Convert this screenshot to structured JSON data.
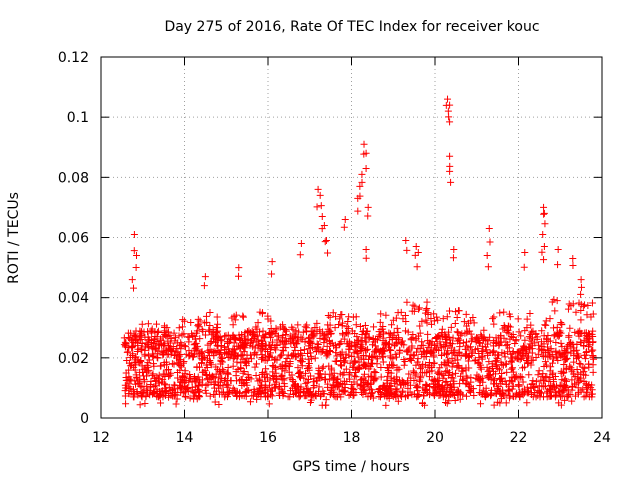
{
  "chart_data": {
    "type": "scatter",
    "title": "Day 275 of 2016, Rate Of TEC Index for receiver kouc",
    "xlabel": "GPS time / hours",
    "ylabel": "ROTI / TECUs",
    "xlim": [
      12,
      24
    ],
    "ylim": [
      0,
      0.12
    ],
    "x_ticks": [
      12,
      14,
      16,
      18,
      20,
      22,
      24
    ],
    "x_tick_labels": [
      "12",
      "14",
      "16",
      "18",
      "20",
      "22",
      "24"
    ],
    "y_ticks": [
      0,
      0.02,
      0.04,
      0.06,
      0.08,
      0.1,
      0.12
    ],
    "y_tick_labels": [
      "0",
      "0.02",
      "0.04",
      "0.06",
      "0.08",
      "0.1",
      "0.12"
    ],
    "grid": true,
    "marker": "+",
    "marker_color": "#ff0000",
    "series": [
      {
        "name": "ROTI",
        "x_range": [
          12.55,
          23.8
        ],
        "typical_y_range": [
          0.005,
          0.03
        ],
        "band": [
          [
            12.6,
            0.03
          ],
          [
            13.0,
            0.032
          ],
          [
            13.5,
            0.031
          ],
          [
            14.0,
            0.033
          ],
          [
            14.5,
            0.036
          ],
          [
            15.0,
            0.033
          ],
          [
            15.5,
            0.036
          ],
          [
            16.0,
            0.035
          ],
          [
            16.5,
            0.031
          ],
          [
            17.0,
            0.032
          ],
          [
            17.5,
            0.037
          ],
          [
            18.0,
            0.035
          ],
          [
            18.5,
            0.034
          ],
          [
            19.0,
            0.036
          ],
          [
            19.5,
            0.04
          ],
          [
            20.0,
            0.038
          ],
          [
            20.5,
            0.036
          ],
          [
            21.0,
            0.034
          ],
          [
            21.5,
            0.036
          ],
          [
            22.0,
            0.034
          ],
          [
            22.5,
            0.038
          ],
          [
            23.0,
            0.04
          ],
          [
            23.5,
            0.042
          ],
          [
            23.8,
            0.038
          ]
        ],
        "peaks": [
          {
            "x": 12.8,
            "y": 0.061
          },
          {
            "x": 12.85,
            "y": 0.054
          },
          {
            "x": 12.75,
            "y": 0.046
          },
          {
            "x": 14.5,
            "y": 0.047
          },
          {
            "x": 15.3,
            "y": 0.05
          },
          {
            "x": 16.1,
            "y": 0.052
          },
          {
            "x": 16.8,
            "y": 0.058
          },
          {
            "x": 17.2,
            "y": 0.076
          },
          {
            "x": 17.25,
            "y": 0.074
          },
          {
            "x": 17.3,
            "y": 0.067
          },
          {
            "x": 17.35,
            "y": 0.064
          },
          {
            "x": 17.4,
            "y": 0.059
          },
          {
            "x": 17.85,
            "y": 0.066
          },
          {
            "x": 18.2,
            "y": 0.077
          },
          {
            "x": 18.15,
            "y": 0.073
          },
          {
            "x": 18.3,
            "y": 0.091
          },
          {
            "x": 18.35,
            "y": 0.088
          },
          {
            "x": 18.25,
            "y": 0.081
          },
          {
            "x": 18.4,
            "y": 0.07
          },
          {
            "x": 18.35,
            "y": 0.056
          },
          {
            "x": 19.3,
            "y": 0.059
          },
          {
            "x": 19.55,
            "y": 0.057
          },
          {
            "x": 19.6,
            "y": 0.055
          },
          {
            "x": 20.3,
            "y": 0.106
          },
          {
            "x": 20.35,
            "y": 0.104
          },
          {
            "x": 20.32,
            "y": 0.102
          },
          {
            "x": 20.35,
            "y": 0.087
          },
          {
            "x": 20.35,
            "y": 0.082
          },
          {
            "x": 20.45,
            "y": 0.056
          },
          {
            "x": 21.3,
            "y": 0.063
          },
          {
            "x": 21.25,
            "y": 0.054
          },
          {
            "x": 22.15,
            "y": 0.055
          },
          {
            "x": 22.6,
            "y": 0.07
          },
          {
            "x": 22.62,
            "y": 0.068
          },
          {
            "x": 22.58,
            "y": 0.061
          },
          {
            "x": 22.62,
            "y": 0.057
          },
          {
            "x": 22.95,
            "y": 0.056
          },
          {
            "x": 23.3,
            "y": 0.053
          },
          {
            "x": 23.5,
            "y": 0.046
          }
        ]
      }
    ]
  }
}
